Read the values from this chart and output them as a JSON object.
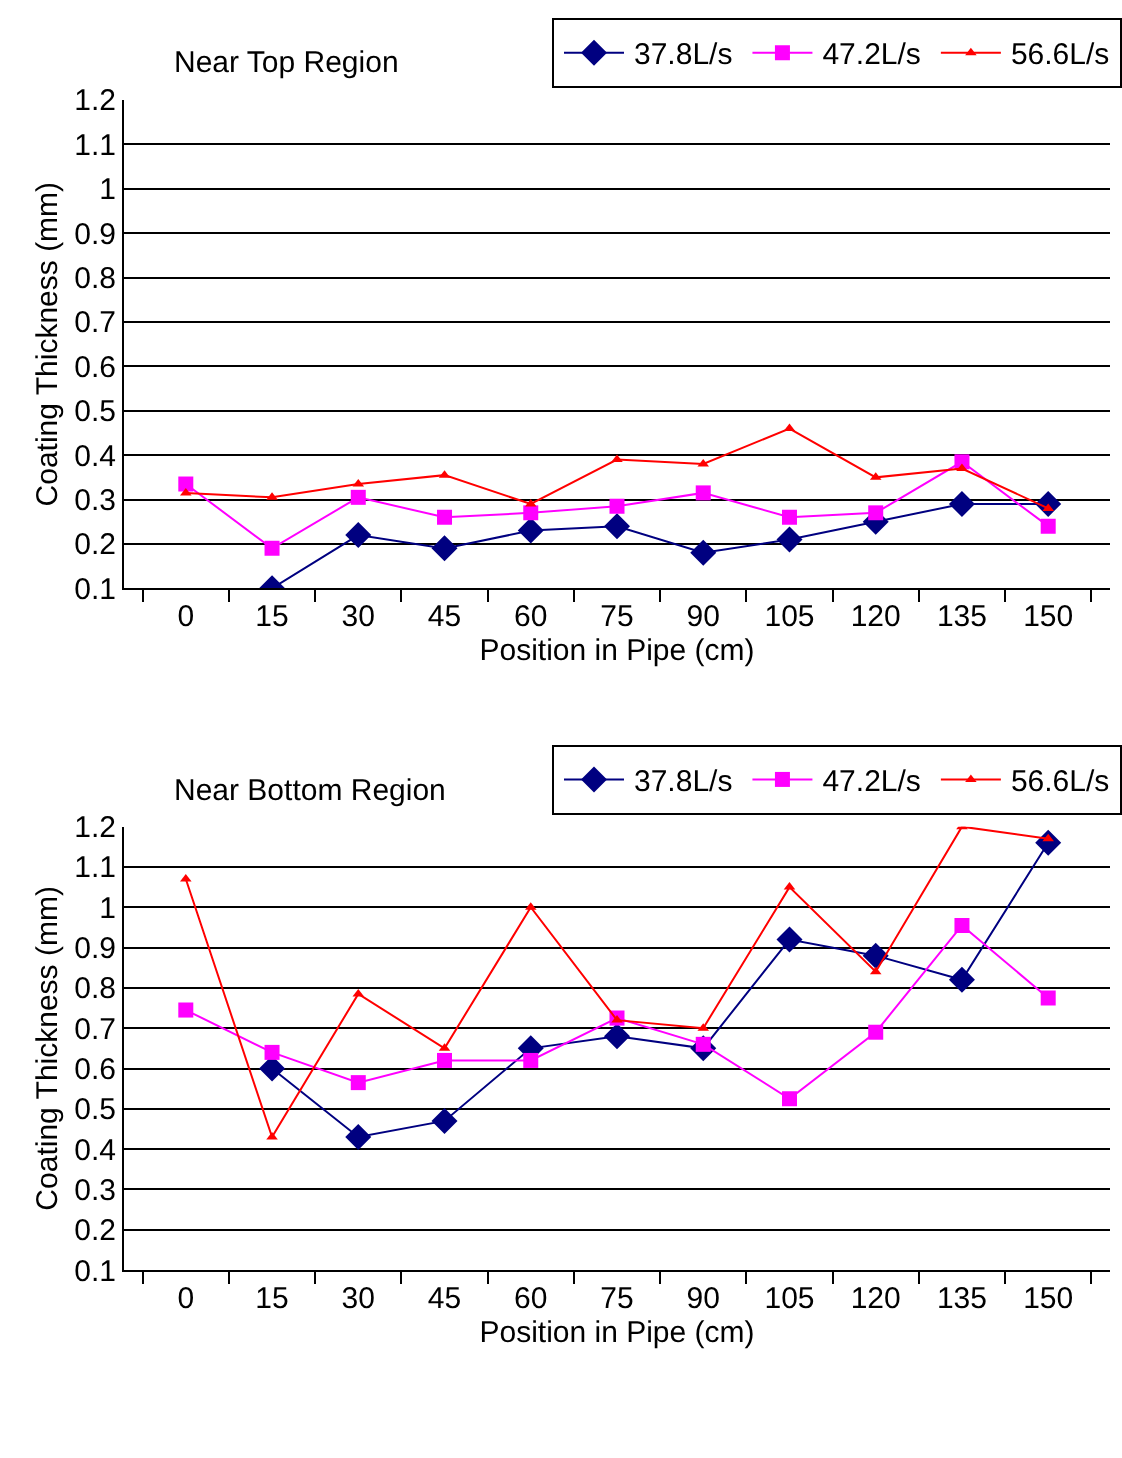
{
  "chart_data": [
    {
      "type": "line",
      "title": "Near Top Region",
      "xlabel": "Position in Pipe (cm)",
      "ylabel": "Coating Thickness (mm)",
      "categories": [
        "0",
        "15",
        "30",
        "45",
        "60",
        "75",
        "90",
        "105",
        "120",
        "135",
        "150"
      ],
      "ylim": [
        0.1,
        1.2
      ],
      "yticks": [
        0.1,
        0.2,
        0.3,
        0.4,
        0.5,
        0.6,
        0.7,
        0.8,
        0.9,
        1,
        1.1,
        1.2
      ],
      "grid": "y",
      "legend": "top right",
      "series": [
        {
          "name": "37.8L/s",
          "color": "#000080",
          "marker": "diamond",
          "values": [
            null,
            0.1,
            0.22,
            0.19,
            0.23,
            0.24,
            0.18,
            0.21,
            0.25,
            0.29,
            0.29
          ]
        },
        {
          "name": "47.2L/s",
          "color": "#ff00ff",
          "marker": "square",
          "values": [
            0.335,
            0.19,
            0.305,
            0.26,
            0.27,
            0.285,
            0.315,
            0.26,
            0.27,
            0.385,
            0.24
          ]
        },
        {
          "name": "56.6L/s",
          "color": "#ff0000",
          "marker": "triangle",
          "values": [
            0.315,
            0.305,
            0.335,
            0.355,
            0.29,
            0.39,
            0.38,
            0.46,
            0.35,
            0.37,
            0.28
          ]
        }
      ]
    },
    {
      "type": "line",
      "title": "Near Bottom Region",
      "xlabel": "Position in Pipe (cm)",
      "ylabel": "Coating Thickness (mm)",
      "categories": [
        "0",
        "15",
        "30",
        "45",
        "60",
        "75",
        "90",
        "105",
        "120",
        "135",
        "150"
      ],
      "ylim": [
        0.1,
        1.2
      ],
      "yticks": [
        0.1,
        0.2,
        0.3,
        0.4,
        0.5,
        0.6,
        0.7,
        0.8,
        0.9,
        1,
        1.1,
        1.2
      ],
      "grid": "y",
      "legend": "top right",
      "series": [
        {
          "name": "37.8L/s",
          "color": "#000080",
          "marker": "diamond",
          "values": [
            null,
            0.6,
            0.43,
            0.47,
            0.65,
            0.68,
            0.65,
            0.92,
            0.88,
            0.82,
            1.16
          ]
        },
        {
          "name": "47.2L/s",
          "color": "#ff00ff",
          "marker": "square",
          "values": [
            0.745,
            0.64,
            0.565,
            0.62,
            0.62,
            0.725,
            0.66,
            0.525,
            0.69,
            0.955,
            0.775
          ]
        },
        {
          "name": "56.6L/s",
          "color": "#ff0000",
          "marker": "triangle",
          "values": [
            1.07,
            0.43,
            0.785,
            0.65,
            1.0,
            0.72,
            0.7,
            1.05,
            0.84,
            1.2,
            1.17
          ]
        }
      ]
    }
  ]
}
